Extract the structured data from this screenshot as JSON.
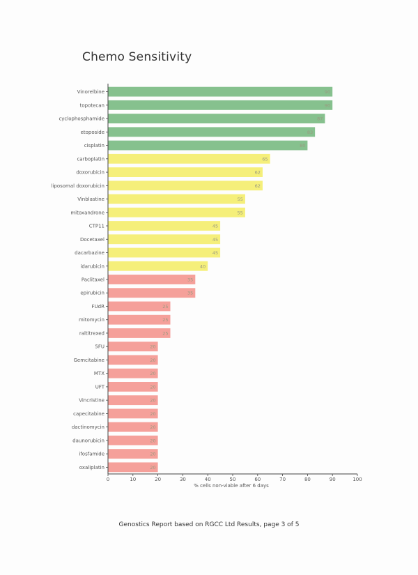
{
  "page": {
    "title": "Chemo Sensitivity",
    "footer": "Genostics Report based on RGCC Ltd Results, page 3 of 5"
  },
  "colors": {
    "green": "#86c18e",
    "yellow": "#f5ef7a",
    "red": "#f5a09a",
    "axis": "#444444",
    "label": "#555555"
  },
  "chart_data": {
    "type": "bar",
    "orientation": "horizontal",
    "title": "Chemo Sensitivity",
    "xlabel": "% cells non-viable after 6 days",
    "ylabel": "",
    "xlim": [
      0,
      100
    ],
    "xticks": [
      0,
      10,
      20,
      30,
      40,
      50,
      60,
      70,
      80,
      90,
      100
    ],
    "grid": false,
    "categories": [
      "Vinorelbine",
      "topotecan",
      "cyclophosphamide",
      "etoposide",
      "cisplatin",
      "carboplatin",
      "doxorubicin",
      "liposomal doxorubicin",
      "Vinblastine",
      "mitoxandrone",
      "CTP11",
      "Docetaxel",
      "dacarbazine",
      "idarubicin",
      "Paclitaxel",
      "epirubicin",
      "FUdR",
      "mitomycin",
      "raltitrexed",
      "5FU",
      "Gemcitabine",
      "MTX",
      "UFT",
      "Vincristine",
      "capecitabine",
      "dactinomycin",
      "daunorubicin",
      "ifosfamide",
      "oxaliplatin"
    ],
    "values": [
      90,
      90,
      87,
      83,
      80,
      65,
      62,
      62,
      55,
      55,
      45,
      45,
      45,
      40,
      35,
      35,
      25,
      25,
      25,
      20,
      20,
      20,
      20,
      20,
      20,
      20,
      20,
      20,
      20
    ],
    "bar_groups": [
      "green",
      "green",
      "green",
      "green",
      "green",
      "yellow",
      "yellow",
      "yellow",
      "yellow",
      "yellow",
      "yellow",
      "yellow",
      "yellow",
      "yellow",
      "red",
      "red",
      "red",
      "red",
      "red",
      "red",
      "red",
      "red",
      "red",
      "red",
      "red",
      "red",
      "red",
      "red",
      "red"
    ]
  }
}
